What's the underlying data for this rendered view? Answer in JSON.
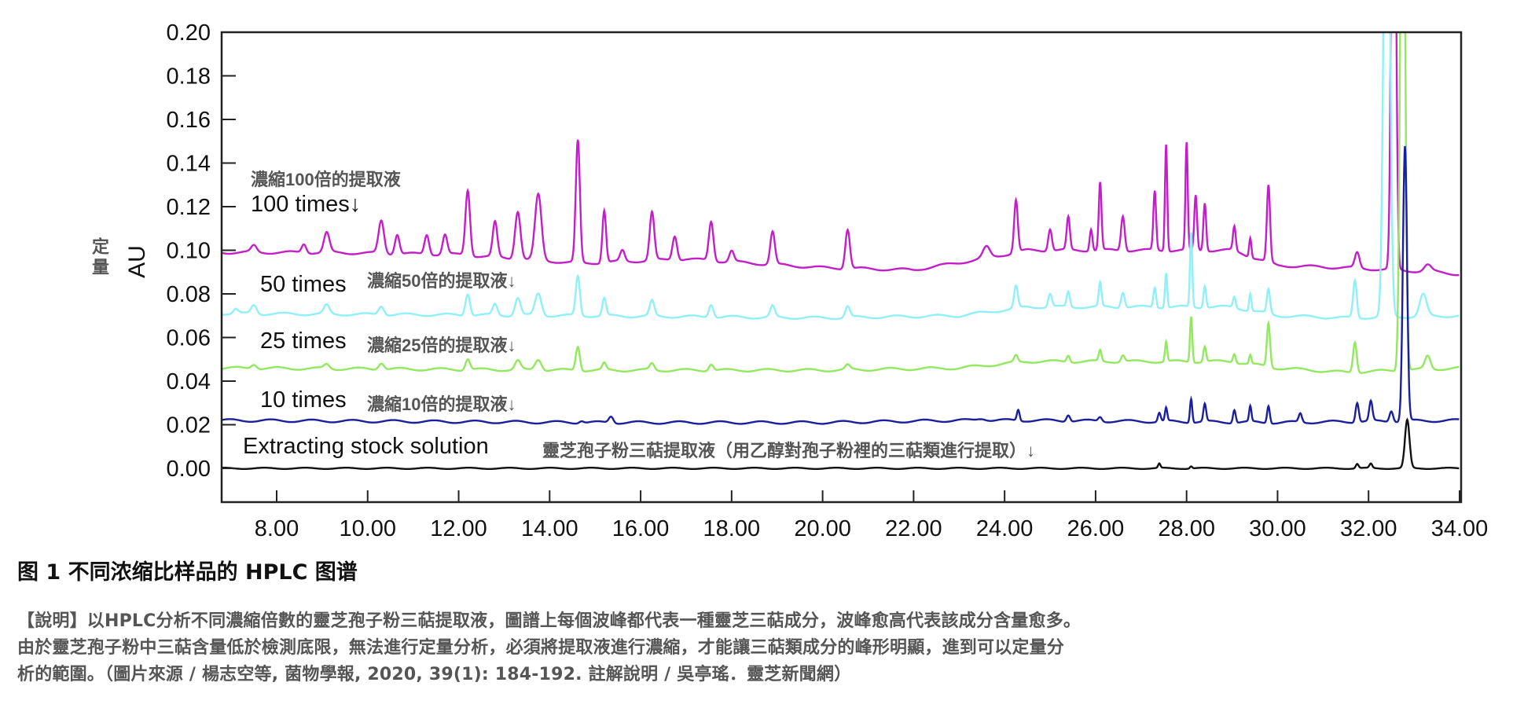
{
  "chart_data": {
    "type": "line",
    "ylabel": "AU",
    "ylabel_cn": "定量",
    "xlim": [
      6.8,
      34.0
    ],
    "ylim": [
      -0.013,
      0.2
    ],
    "xticks": [
      "8.00",
      "10.00",
      "12.00",
      "14.00",
      "16.00",
      "18.00",
      "20.00",
      "22.00",
      "24.00",
      "26.00",
      "28.00",
      "30.00",
      "32.00",
      "34.00"
    ],
    "yticks": [
      "0.00",
      "0.02",
      "0.04",
      "0.06",
      "0.08",
      "0.10",
      "0.12",
      "0.14",
      "0.16",
      "0.18",
      "0.20"
    ],
    "grid": false,
    "series": [
      {
        "name": "100 times",
        "color": "#c21fc9",
        "baseline": [
          [
            6.8,
            0.099
          ],
          [
            9,
            0.099
          ],
          [
            12,
            0.098
          ],
          [
            14.7,
            0.094
          ],
          [
            17,
            0.096
          ],
          [
            20,
            0.092
          ],
          [
            22,
            0.091
          ],
          [
            23.5,
            0.096
          ],
          [
            24.5,
            0.1
          ],
          [
            29,
            0.1
          ],
          [
            30,
            0.093
          ],
          [
            31.5,
            0.092
          ],
          [
            33.5,
            0.09
          ],
          [
            34,
            0.089
          ]
        ],
        "peaks": [
          [
            7.5,
            0.003,
            0.12
          ],
          [
            8.6,
            0.004,
            0.1
          ],
          [
            9.1,
            0.009,
            0.12
          ],
          [
            10.3,
            0.015,
            0.12
          ],
          [
            10.65,
            0.009,
            0.1
          ],
          [
            11.3,
            0.009,
            0.1
          ],
          [
            11.7,
            0.009,
            0.1
          ],
          [
            12.2,
            0.03,
            0.1
          ],
          [
            12.8,
            0.016,
            0.1
          ],
          [
            13.3,
            0.022,
            0.12
          ],
          [
            13.75,
            0.03,
            0.14
          ],
          [
            14.62,
            0.056,
            0.09
          ],
          [
            15.2,
            0.024,
            0.08
          ],
          [
            15.6,
            0.005,
            0.1
          ],
          [
            16.25,
            0.022,
            0.1
          ],
          [
            16.75,
            0.011,
            0.1
          ],
          [
            17.55,
            0.018,
            0.1
          ],
          [
            18.0,
            0.005,
            0.1
          ],
          [
            18.9,
            0.015,
            0.1
          ],
          [
            20.55,
            0.018,
            0.1
          ],
          [
            23.6,
            0.005,
            0.15
          ],
          [
            24.25,
            0.024,
            0.08
          ],
          [
            25.0,
            0.01,
            0.08
          ],
          [
            25.4,
            0.015,
            0.07
          ],
          [
            25.9,
            0.01,
            0.06
          ],
          [
            26.1,
            0.031,
            0.06
          ],
          [
            26.6,
            0.016,
            0.08
          ],
          [
            27.3,
            0.027,
            0.06
          ],
          [
            27.55,
            0.049,
            0.05
          ],
          [
            28.0,
            0.049,
            0.05
          ],
          [
            28.2,
            0.025,
            0.06
          ],
          [
            28.4,
            0.022,
            0.06
          ],
          [
            29.05,
            0.011,
            0.06
          ],
          [
            29.4,
            0.009,
            0.05
          ],
          [
            29.8,
            0.035,
            0.07
          ],
          [
            31.75,
            0.007,
            0.1
          ],
          [
            32.55,
            0.3,
            0.09
          ],
          [
            33.3,
            0.003,
            0.15
          ]
        ]
      },
      {
        "name": "50 times",
        "color": "#8ff0f7",
        "baseline": [
          [
            6.8,
            0.071
          ],
          [
            14.7,
            0.07
          ],
          [
            20,
            0.069
          ],
          [
            23,
            0.07
          ],
          [
            24.5,
            0.074
          ],
          [
            29,
            0.074
          ],
          [
            30,
            0.07
          ],
          [
            31.5,
            0.069
          ],
          [
            34,
            0.07
          ]
        ],
        "peaks": [
          [
            7.1,
            0.002,
            0.1
          ],
          [
            7.5,
            0.004,
            0.12
          ],
          [
            9.1,
            0.004,
            0.12
          ],
          [
            10.3,
            0.004,
            0.12
          ],
          [
            12.2,
            0.01,
            0.1
          ],
          [
            12.8,
            0.005,
            0.1
          ],
          [
            13.3,
            0.008,
            0.12
          ],
          [
            13.75,
            0.01,
            0.14
          ],
          [
            14.62,
            0.018,
            0.09
          ],
          [
            15.2,
            0.008,
            0.08
          ],
          [
            16.25,
            0.007,
            0.1
          ],
          [
            17.55,
            0.006,
            0.1
          ],
          [
            18.9,
            0.005,
            0.1
          ],
          [
            20.55,
            0.005,
            0.1
          ],
          [
            24.25,
            0.01,
            0.08
          ],
          [
            25.0,
            0.006,
            0.08
          ],
          [
            25.4,
            0.007,
            0.07
          ],
          [
            26.1,
            0.011,
            0.06
          ],
          [
            26.6,
            0.007,
            0.08
          ],
          [
            27.3,
            0.009,
            0.06
          ],
          [
            27.55,
            0.016,
            0.05
          ],
          [
            28.1,
            0.034,
            0.05
          ],
          [
            28.4,
            0.01,
            0.06
          ],
          [
            29.05,
            0.005,
            0.06
          ],
          [
            29.4,
            0.008,
            0.05
          ],
          [
            29.8,
            0.011,
            0.07
          ],
          [
            31.7,
            0.017,
            0.08
          ],
          [
            32.4,
            0.3,
            0.12
          ],
          [
            33.2,
            0.01,
            0.15
          ]
        ]
      },
      {
        "name": "25 times",
        "color": "#92e85f",
        "baseline": [
          [
            6.8,
            0.046
          ],
          [
            14.7,
            0.045
          ],
          [
            20,
            0.045
          ],
          [
            23,
            0.046
          ],
          [
            24.5,
            0.049
          ],
          [
            29,
            0.049
          ],
          [
            30,
            0.046
          ],
          [
            31.5,
            0.044
          ],
          [
            34,
            0.046
          ]
        ],
        "peaks": [
          [
            7.5,
            0.002,
            0.12
          ],
          [
            9.1,
            0.002,
            0.12
          ],
          [
            10.3,
            0.003,
            0.12
          ],
          [
            12.2,
            0.005,
            0.1
          ],
          [
            13.3,
            0.004,
            0.12
          ],
          [
            13.75,
            0.005,
            0.14
          ],
          [
            14.62,
            0.011,
            0.09
          ],
          [
            15.2,
            0.003,
            0.08
          ],
          [
            16.25,
            0.003,
            0.1
          ],
          [
            17.55,
            0.003,
            0.1
          ],
          [
            20.55,
            0.002,
            0.1
          ],
          [
            24.25,
            0.003,
            0.08
          ],
          [
            25.4,
            0.003,
            0.07
          ],
          [
            26.1,
            0.005,
            0.06
          ],
          [
            26.6,
            0.003,
            0.08
          ],
          [
            27.55,
            0.009,
            0.05
          ],
          [
            28.1,
            0.021,
            0.05
          ],
          [
            28.4,
            0.007,
            0.06
          ],
          [
            29.05,
            0.004,
            0.06
          ],
          [
            29.4,
            0.004,
            0.05
          ],
          [
            29.8,
            0.02,
            0.07
          ],
          [
            31.7,
            0.014,
            0.08
          ],
          [
            32.75,
            0.3,
            0.1
          ],
          [
            33.3,
            0.006,
            0.12
          ]
        ]
      },
      {
        "name": "10 times",
        "color": "#1a1f9e",
        "baseline": [
          [
            6.8,
            0.022
          ],
          [
            15,
            0.021
          ],
          [
            20,
            0.021
          ],
          [
            23,
            0.022
          ],
          [
            24.5,
            0.022
          ],
          [
            30,
            0.021
          ],
          [
            34,
            0.022
          ]
        ],
        "peaks": [
          [
            14.7,
            0.001,
            0.1
          ],
          [
            15.35,
            0.003,
            0.1
          ],
          [
            23.5,
            0.001,
            0.2
          ],
          [
            24.3,
            0.005,
            0.06
          ],
          [
            25.4,
            0.003,
            0.08
          ],
          [
            26.1,
            0.002,
            0.08
          ],
          [
            27.4,
            0.004,
            0.06
          ],
          [
            27.55,
            0.006,
            0.05
          ],
          [
            28.1,
            0.011,
            0.05
          ],
          [
            28.4,
            0.008,
            0.06
          ],
          [
            29.05,
            0.006,
            0.06
          ],
          [
            29.4,
            0.007,
            0.05
          ],
          [
            29.8,
            0.008,
            0.06
          ],
          [
            30.5,
            0.004,
            0.07
          ],
          [
            31.75,
            0.009,
            0.07
          ],
          [
            32.05,
            0.009,
            0.07
          ],
          [
            32.5,
            0.005,
            0.08
          ],
          [
            32.8,
            0.126,
            0.09
          ]
        ]
      },
      {
        "name": "Extracting stock solution",
        "color": "#111111",
        "baseline": [
          [
            6.8,
            0.0
          ],
          [
            34,
            0.0
          ]
        ],
        "peaks": [
          [
            27.4,
            0.002,
            0.05
          ],
          [
            28.1,
            0.001,
            0.05
          ],
          [
            31.75,
            0.002,
            0.06
          ],
          [
            32.05,
            0.002,
            0.06
          ],
          [
            32.85,
            0.022,
            0.1
          ]
        ]
      }
    ]
  },
  "annotations": {
    "s100_cn": "濃縮100倍的提取液",
    "s100_en": "100 times↓",
    "s50_en": "50 times",
    "s50_cn": "濃縮50倍的提取液↓",
    "s25_en": "25 times",
    "s25_cn": "濃縮25倍的提取液↓",
    "s10_en": "10 times",
    "s10_cn": "濃縮10倍的提取液↓",
    "stock_en": "Extracting stock solution",
    "stock_cn": "靈芝孢子粉三萜提取液（用乙醇對孢子粉裡的三萜類進行提取）↓"
  },
  "figure_title": "图 1  不同浓缩比样品的 HPLC 图谱",
  "description_lines": [
    "【說明】以HPLC分析不同濃縮倍數的靈芝孢子粉三萜提取液，圖譜上每個波峰都代表一種靈芝三萜成分，波峰愈高代表該成分含量愈多。",
    "由於靈芝孢子粉中三萜含量低於檢測底限，無法進行定量分析，必須將提取液進行濃縮，才能讓三萜類成分的峰形明顯，進到可以定量分",
    "析的範圍。（圖片來源 / 楊志空等, 菌物學報, 2020, 39(1): 184-192.      註解說明 / 吳亭瑤．靈芝新聞網）"
  ]
}
